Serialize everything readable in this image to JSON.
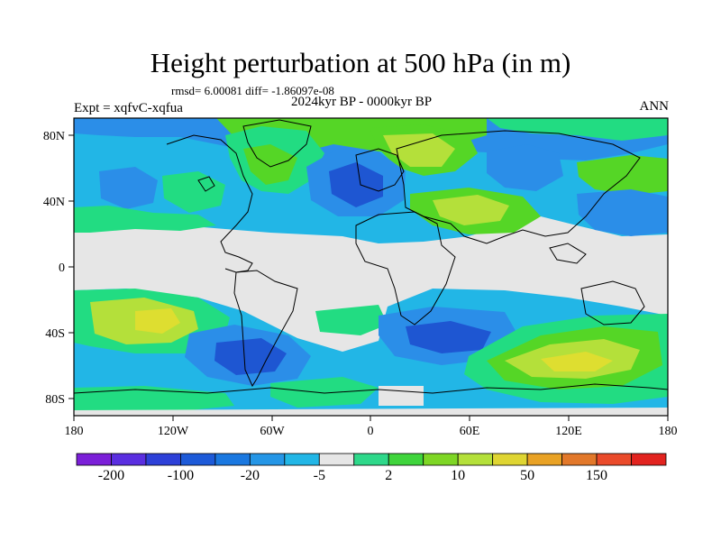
{
  "header": {
    "title": "Height perturbation at 500 hPa (in m)",
    "stats": "rmsd= 6.00081 diff= -1.86097e-08",
    "period": "2024kyr BP - 0000kyr BP",
    "experiment": "Expt = xqfvC-xqfua",
    "season": "ANN"
  },
  "map": {
    "lat_labels": [
      "80N",
      "40N",
      "0",
      "40S",
      "80S"
    ],
    "lon_labels": [
      "180",
      "120W",
      "60W",
      "0",
      "60E",
      "120E",
      "180"
    ],
    "colors": {
      "neg_strong": "#1e56d2",
      "neg_mid": "#2b8ee8",
      "neg_weak": "#22b6e6",
      "near_zero": "#e6e6e6",
      "pos_weak": "#22dc82",
      "pos_mid": "#55d626",
      "pos_strong": "#b4e03a",
      "pos_max": "#dede30",
      "coast": "#000000"
    }
  },
  "colorbar": {
    "colors": [
      "#7b1fd8",
      "#5a2ee0",
      "#2d40d8",
      "#1d5ad8",
      "#1a78e0",
      "#2596e6",
      "#22b6e6",
      "#e6e6e6",
      "#2ed88a",
      "#3fd43c",
      "#7ed625",
      "#b4e03a",
      "#dfd532",
      "#e9a225",
      "#e2782a",
      "#ea4a2a",
      "#e2231f"
    ],
    "labels": [
      "-200",
      "-100",
      "-20",
      "-5",
      "2",
      "10",
      "50",
      "150"
    ]
  }
}
